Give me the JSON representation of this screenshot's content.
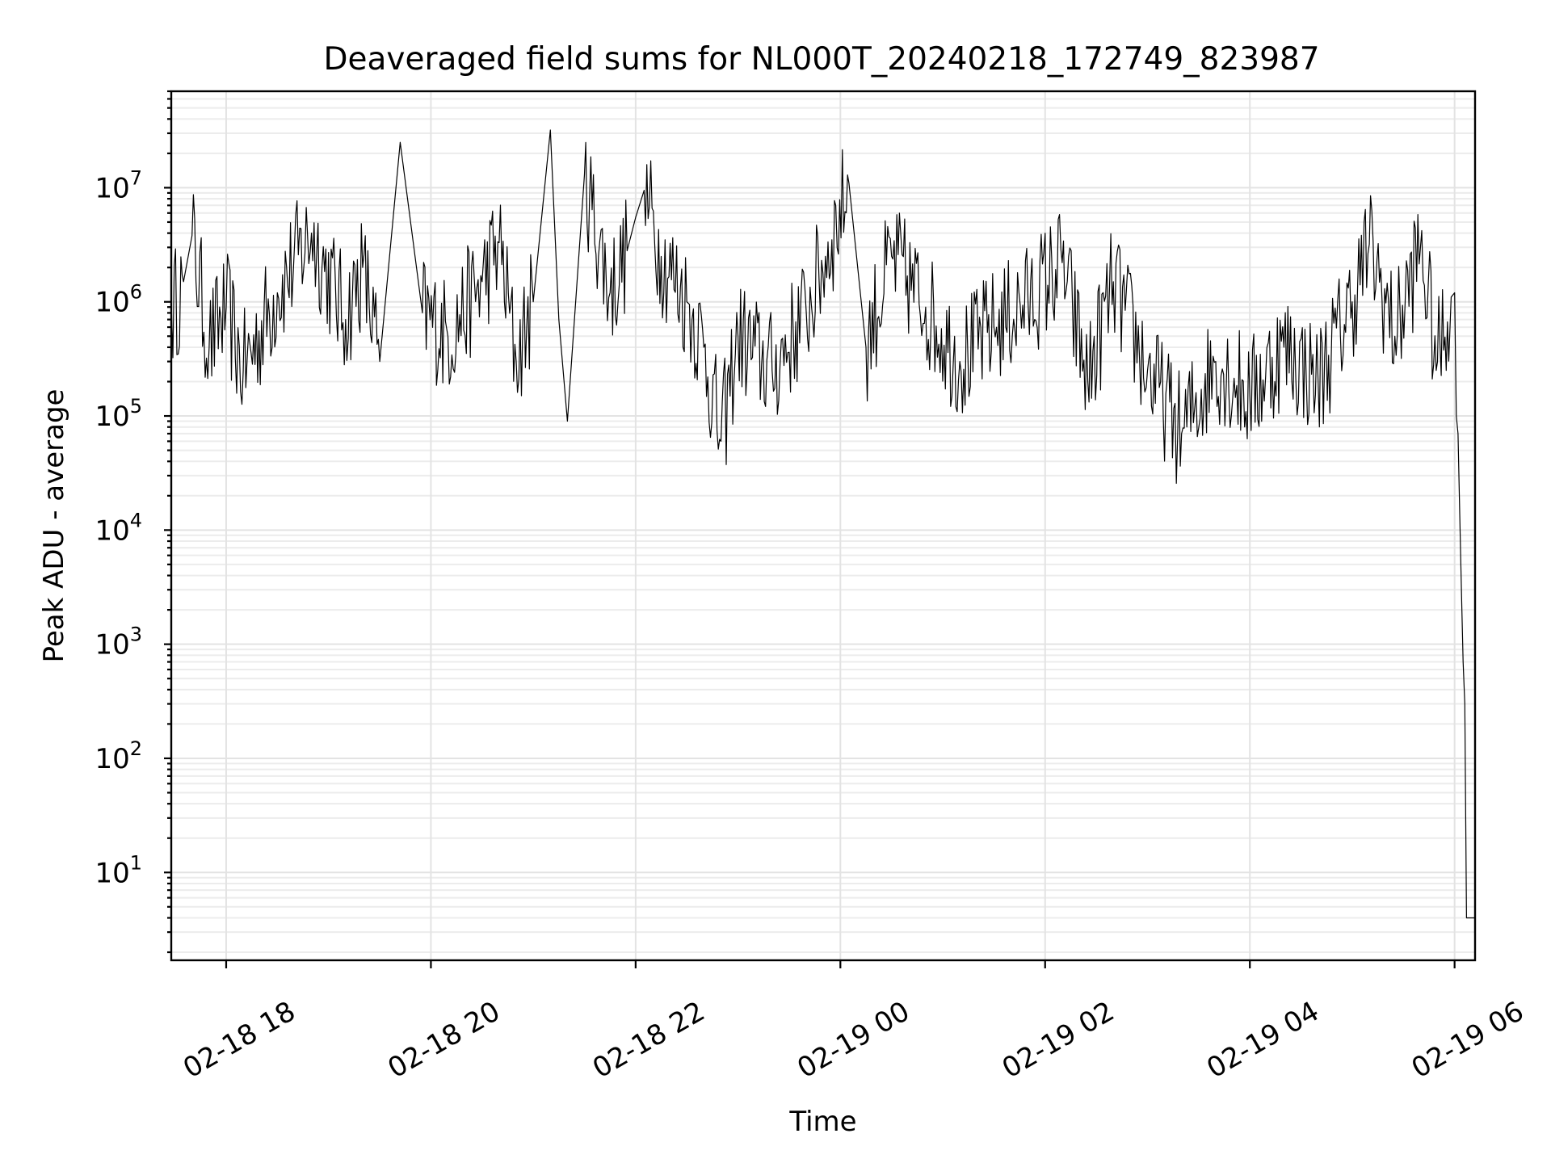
{
  "chart_data": {
    "type": "line",
    "title": "Deaveraged field sums for NL000T_20240218_172749_823987",
    "xlabel": "Time",
    "ylabel": "Peak ADU - average",
    "x_range": [
      "2024-02-18T17:27:49",
      "2024-02-19T06:12:00"
    ],
    "y_scale": "log",
    "ylim": [
      1.7,
      70000000
    ],
    "grid": true,
    "x_ticks": [
      {
        "value": "2024-02-18T18:00:00",
        "label": "02-18 18"
      },
      {
        "value": "2024-02-18T20:00:00",
        "label": "02-18 20"
      },
      {
        "value": "2024-02-18T22:00:00",
        "label": "02-18 22"
      },
      {
        "value": "2024-02-19T00:00:00",
        "label": "02-19 00"
      },
      {
        "value": "2024-02-19T02:00:00",
        "label": "02-19 02"
      },
      {
        "value": "2024-02-19T04:00:00",
        "label": "02-19 04"
      },
      {
        "value": "2024-02-19T06:00:00",
        "label": "02-19 06"
      }
    ],
    "y_ticks": [
      {
        "value": 10,
        "base": "10",
        "exp": "1"
      },
      {
        "value": 100,
        "base": "10",
        "exp": "2"
      },
      {
        "value": 1000,
        "base": "10",
        "exp": "3"
      },
      {
        "value": 10000,
        "base": "10",
        "exp": "4"
      },
      {
        "value": 100000,
        "base": "10",
        "exp": "5"
      },
      {
        "value": 1000000,
        "base": "10",
        "exp": "6"
      },
      {
        "value": 10000000,
        "base": "10",
        "exp": "7"
      }
    ],
    "series": [
      {
        "color": "#000000",
        "points": [
          [
            "2024-02-18T17:28:00",
            800000
          ],
          [
            "2024-02-18T17:35:00",
            1500000
          ],
          [
            "2024-02-18T17:40:00",
            3800000
          ],
          [
            "2024-02-18T17:50:00",
            400000
          ],
          [
            "2024-02-18T18:00:00",
            900000
          ],
          [
            "2024-02-18T18:10:00",
            250000
          ],
          [
            "2024-02-18T18:30:00",
            1200000
          ],
          [
            "2024-02-18T18:50:00",
            4000000
          ],
          [
            "2024-02-18T19:10:00",
            700000
          ],
          [
            "2024-02-18T19:20:00",
            2000000
          ],
          [
            "2024-02-18T19:30:00",
            300000
          ],
          [
            "2024-02-18T19:42:00",
            25000000
          ],
          [
            "2024-02-18T19:55:00",
            800000
          ],
          [
            "2024-02-18T20:10:00",
            500000
          ],
          [
            "2024-02-18T20:30:00",
            1500000
          ],
          [
            "2024-02-18T20:40:00",
            3300000
          ],
          [
            "2024-02-18T20:50:00",
            300000
          ],
          [
            "2024-02-18T21:00:00",
            1000000
          ],
          [
            "2024-02-18T21:10:00",
            32000000
          ],
          [
            "2024-02-18T21:15:00",
            700000
          ],
          [
            "2024-02-18T21:20:00",
            90000
          ],
          [
            "2024-02-18T21:30:00",
            13000000
          ],
          [
            "2024-02-18T21:45:00",
            1200000
          ],
          [
            "2024-02-18T21:55:00",
            2800000
          ],
          [
            "2024-02-18T22:00:00",
            5500000
          ],
          [
            "2024-02-18T22:05:00",
            9500000
          ],
          [
            "2024-02-18T22:15:00",
            2500000
          ],
          [
            "2024-02-18T22:30:00",
            1000000
          ],
          [
            "2024-02-18T22:40:00",
            400000
          ],
          [
            "2024-02-18T22:50:00",
            60000
          ],
          [
            "2024-02-18T23:00:00",
            500000
          ],
          [
            "2024-02-18T23:20:00",
            250000
          ],
          [
            "2024-02-18T23:40:00",
            800000
          ],
          [
            "2024-02-18T23:55:00",
            3500000
          ],
          [
            "2024-02-19T00:05:00",
            11000000
          ],
          [
            "2024-02-19T00:15:00",
            400000
          ],
          [
            "2024-02-19T00:30:00",
            2500000
          ],
          [
            "2024-02-19T00:50:00",
            900000
          ],
          [
            "2024-02-19T01:10:00",
            300000
          ],
          [
            "2024-02-19T01:30:00",
            600000
          ],
          [
            "2024-02-19T01:50:00",
            1000000
          ],
          [
            "2024-02-19T02:10:00",
            2200000
          ],
          [
            "2024-02-19T02:25:00",
            200000
          ],
          [
            "2024-02-19T02:40:00",
            1500000
          ],
          [
            "2024-02-19T03:00:00",
            250000
          ],
          [
            "2024-02-19T03:20:00",
            70000
          ],
          [
            "2024-02-19T03:40:00",
            300000
          ],
          [
            "2024-02-19T04:00:00",
            150000
          ],
          [
            "2024-02-19T04:20:00",
            400000
          ],
          [
            "2024-02-19T04:40:00",
            200000
          ],
          [
            "2024-02-19T05:00:00",
            1000000
          ],
          [
            "2024-02-19T05:10:00",
            3200000
          ],
          [
            "2024-02-19T05:25:00",
            500000
          ],
          [
            "2024-02-19T05:40:00",
            3000000
          ],
          [
            "2024-02-19T05:50:00",
            300000
          ],
          [
            "2024-02-19T05:58:00",
            1100000
          ],
          [
            "2024-02-19T06:00:00",
            1200000
          ],
          [
            "2024-02-19T06:01:00",
            100000
          ],
          [
            "2024-02-19T06:02:00",
            70000
          ],
          [
            "2024-02-19T06:03:00",
            14000
          ],
          [
            "2024-02-19T06:04:00",
            3000
          ],
          [
            "2024-02-19T06:05:00",
            700
          ],
          [
            "2024-02-19T06:06:00",
            300
          ],
          [
            "2024-02-19T06:07:00",
            4
          ],
          [
            "2024-02-19T06:12:00",
            4
          ]
        ]
      }
    ]
  }
}
